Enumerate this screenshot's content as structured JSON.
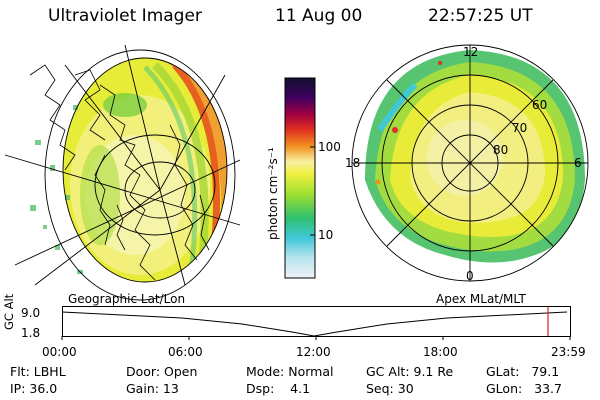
{
  "header": {
    "instrument": "Ultraviolet Imager",
    "date": "11 Aug 00",
    "time": "22:57:25 UT"
  },
  "left_panel": {
    "label": "Geographic Lat/Lon"
  },
  "right_panel": {
    "label": "Apex MLat/MLT",
    "mlt_labels": [
      "12",
      "18",
      "6",
      "0"
    ],
    "mlat_labels": [
      "60",
      "70",
      "80"
    ]
  },
  "colorbar": {
    "unit": "photon cm⁻²s⁻¹",
    "ticks": [
      "100",
      "10"
    ],
    "scale": "log",
    "colors": [
      "#e8eff8",
      "#b8e4ec",
      "#40c8d8",
      "#30c070",
      "#a0e030",
      "#f0f040",
      "#f8f0a0",
      "#f09020",
      "#e03020",
      "#a00040",
      "#400060",
      "#101030"
    ]
  },
  "altitude_plot": {
    "ylabel": "GC Alt",
    "yticks": [
      "9.0",
      "1.8"
    ],
    "xticks": [
      "00:00",
      "06:00",
      "12:00",
      "18:00",
      "23:59"
    ],
    "marker_color": "#e02020"
  },
  "footer": {
    "flt": "Flt: LBHL",
    "ip": "IP: 36.0",
    "door": "Door: Open",
    "gain": "Gain: 13",
    "mode": "Mode: Normal",
    "dsp": "Dsp:    4.1",
    "gc_alt": "GC Alt: 9.1 Re",
    "seq": "Seq: 30",
    "glat": "GLat:   79.1",
    "glon": "GLon:   33.7"
  }
}
